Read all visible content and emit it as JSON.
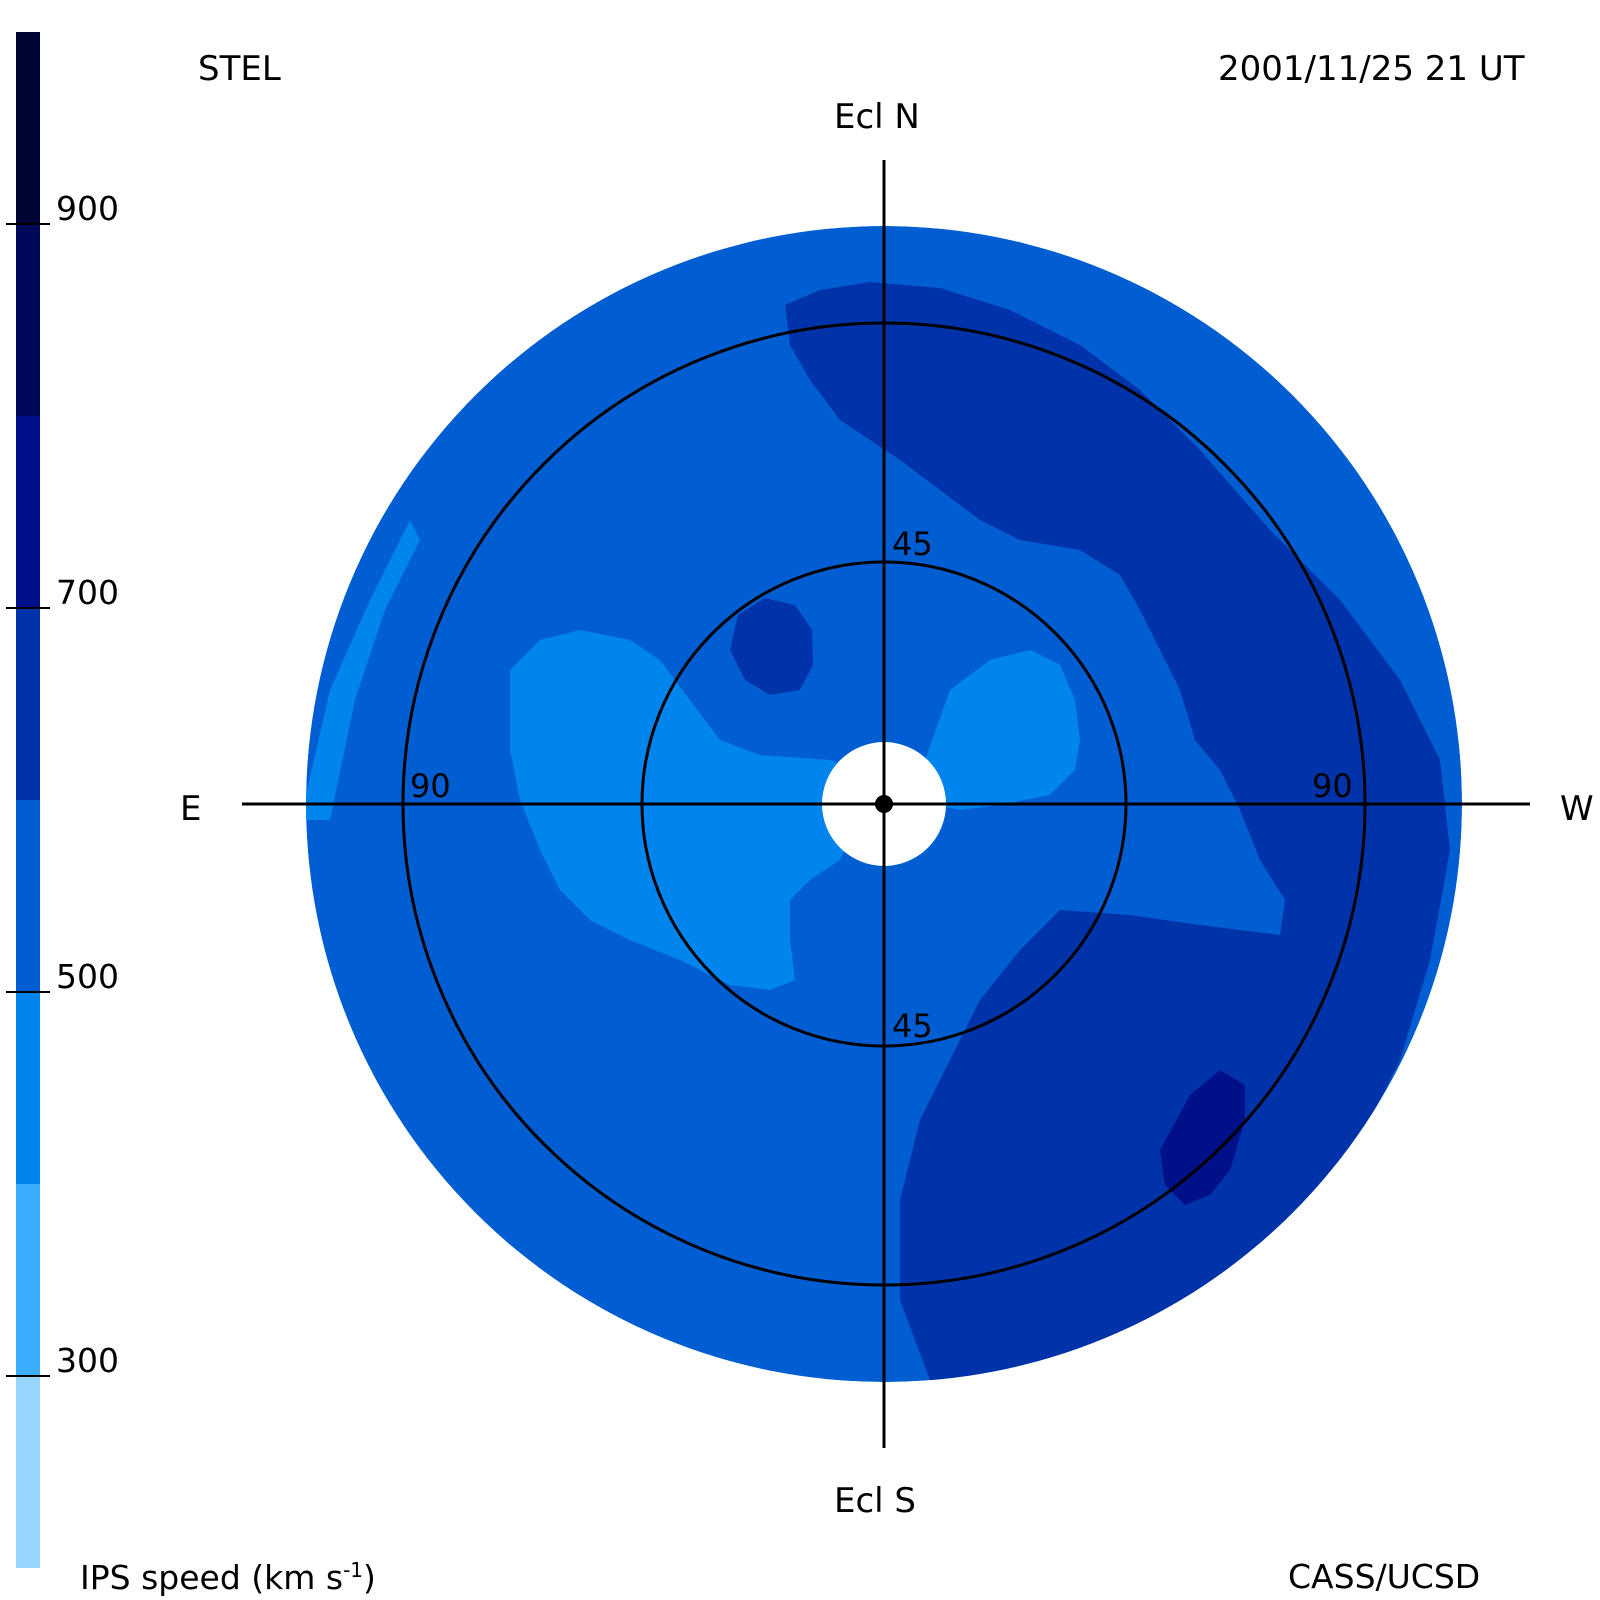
{
  "header": {
    "station": "STEL",
    "timestamp": "2001/11/25 21 UT"
  },
  "footer": {
    "colorbar_title_prefix": "IPS speed (km s",
    "colorbar_title_exp": "-1",
    "colorbar_title_suffix": ")",
    "credit": "CASS/UCSD"
  },
  "directions": {
    "north": "Ecl N",
    "south": "Ecl S",
    "east": "E",
    "west": "W"
  },
  "rings": {
    "inner_label_top": "45",
    "inner_label_bottom": "45",
    "outer_label_left": "90",
    "outer_label_right": "90"
  },
  "colors": {
    "c_lt300": "#99d4ff",
    "c_300": "#3cacff",
    "c_400": "#0084ee",
    "c_500": "#005dd2",
    "c_600": "#0033aa",
    "c_700": "#001089",
    "c_800": "#00085a",
    "c_900": "#000633"
  },
  "chart_data": {
    "type": "heatmap",
    "projection": "fisheye sky map centered on the Sun",
    "colorbar": {
      "label": "IPS speed (km s-1)",
      "ticks": [
        300,
        500,
        700,
        900
      ],
      "range": [
        200,
        1000
      ],
      "bins": [
        {
          "range": [
            200,
            300
          ],
          "color": "#99d4ff"
        },
        {
          "range": [
            300,
            400
          ],
          "color": "#3cacff"
        },
        {
          "range": [
            400,
            500
          ],
          "color": "#0084ee"
        },
        {
          "range": [
            500,
            600
          ],
          "color": "#005dd2"
        },
        {
          "range": [
            600,
            700
          ],
          "color": "#0033aa"
        },
        {
          "range": [
            700,
            800
          ],
          "color": "#001089"
        },
        {
          "range": [
            800,
            900
          ],
          "color": "#00085a"
        },
        {
          "range": [
            900,
            1000
          ],
          "color": "#000633"
        }
      ]
    },
    "elongation_rings_deg": [
      45,
      90
    ],
    "regions": [
      {
        "description": "background map",
        "speed_bin": [
          500,
          600
        ]
      },
      {
        "description": "fast band north-west to south",
        "speed_bin": [
          600,
          700
        ]
      },
      {
        "description": "fast spot south-west",
        "speed_bin": [
          700,
          800
        ]
      },
      {
        "description": "slow lobes near Sun east and west",
        "speed_bin": [
          400,
          500
        ]
      },
      {
        "description": "slow rim east edge",
        "speed_bin": [
          400,
          500
        ]
      }
    ]
  }
}
